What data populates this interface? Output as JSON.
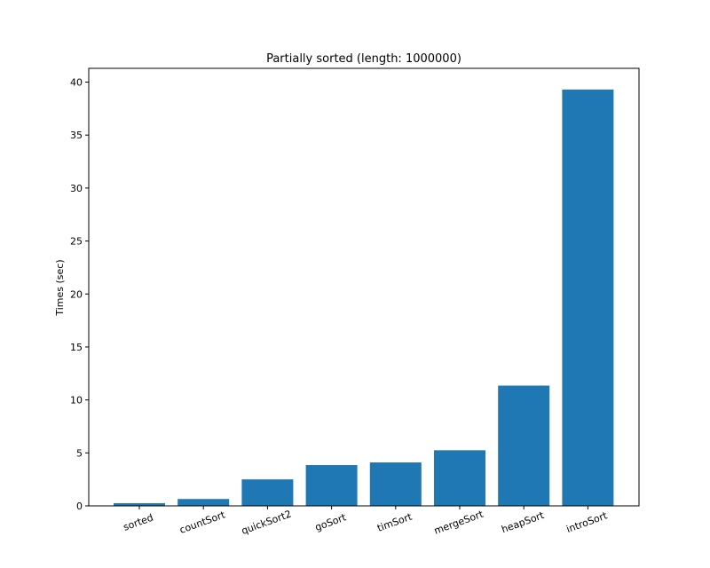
{
  "chart_data": {
    "type": "bar",
    "title": "Partially sorted (length: 1000000)",
    "xlabel": "",
    "ylabel": "Times (sec)",
    "categories": [
      "sorted",
      "countSort",
      "quickSort2",
      "goSort",
      "timSort",
      "mergeSort",
      "heapSort",
      "introSort"
    ],
    "values": [
      0.25,
      0.65,
      2.5,
      3.85,
      4.1,
      5.25,
      11.35,
      39.3
    ],
    "ylim": [
      0,
      41.3
    ],
    "yticks": [
      "0",
      "5",
      "10",
      "15",
      "20",
      "25",
      "30",
      "35",
      "40"
    ],
    "bar_color": "#1f77b4",
    "grid": false,
    "xtick_rotation_deg": -20
  }
}
